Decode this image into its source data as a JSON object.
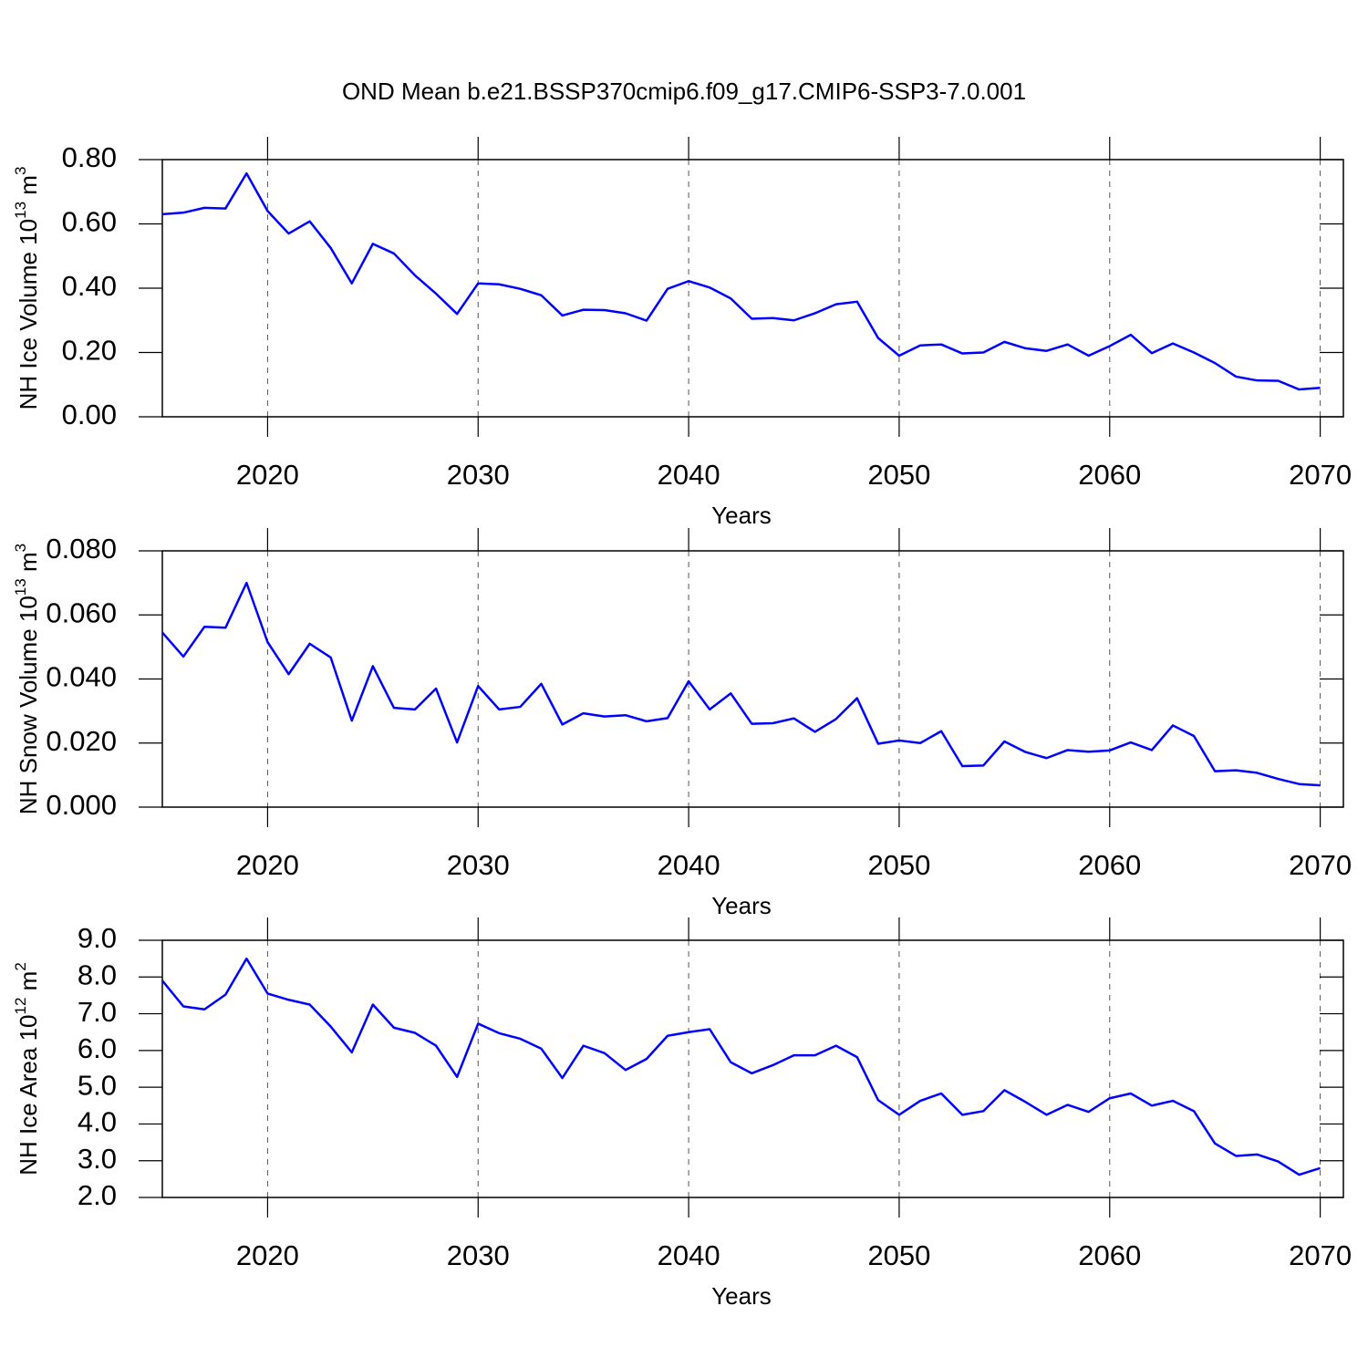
{
  "chart_data": [
    {
      "type": "line",
      "title": "OND Mean b.e21.BSSP370cmip6.f09_g17.CMIP6-SSP3-7.0.001",
      "ylabel": [
        "NH Ice Volume 10",
        "13",
        " m",
        "3"
      ],
      "xlabel": "Years",
      "x": [
        2015,
        2016,
        2017,
        2018,
        2019,
        2020,
        2021,
        2022,
        2023,
        2024,
        2025,
        2026,
        2027,
        2028,
        2029,
        2030,
        2031,
        2032,
        2033,
        2034,
        2035,
        2036,
        2037,
        2038,
        2039,
        2040,
        2041,
        2042,
        2043,
        2044,
        2045,
        2046,
        2047,
        2048,
        2049,
        2050,
        2051,
        2052,
        2053,
        2054,
        2055,
        2056,
        2057,
        2058,
        2059,
        2060,
        2061,
        2062,
        2063,
        2064,
        2065,
        2066,
        2067,
        2068,
        2069,
        2070
      ],
      "values": [
        0.63,
        0.635,
        0.65,
        0.648,
        0.757,
        0.64,
        0.57,
        0.608,
        0.525,
        0.415,
        0.538,
        0.508,
        0.44,
        0.383,
        0.32,
        0.415,
        0.412,
        0.398,
        0.378,
        0.315,
        0.333,
        0.332,
        0.322,
        0.299,
        0.398,
        0.422,
        0.402,
        0.368,
        0.305,
        0.307,
        0.3,
        0.322,
        0.35,
        0.358,
        0.245,
        0.19,
        0.222,
        0.225,
        0.197,
        0.2,
        0.233,
        0.213,
        0.205,
        0.225,
        0.19,
        0.22,
        0.255,
        0.198,
        0.228,
        0.2,
        0.167,
        0.125,
        0.113,
        0.112,
        0.085,
        0.09
      ],
      "color": "#0000ff",
      "xlim": [
        2015,
        2071.1
      ],
      "xticks": [
        2020,
        2030,
        2040,
        2050,
        2060,
        2070
      ],
      "ylim": [
        0,
        0.8
      ],
      "yticks": [
        {
          "value": 0,
          "label": "0.00"
        },
        {
          "value": 0.2,
          "label": "0.20"
        },
        {
          "value": 0.4,
          "label": "0.40"
        },
        {
          "value": 0.6,
          "label": "0.60"
        },
        {
          "value": 0.8,
          "label": "0.80"
        }
      ],
      "xgrid": true
    },
    {
      "type": "line",
      "ylabel": [
        "NH Snow Volume 10",
        "13",
        " m",
        "3"
      ],
      "xlabel": "Years",
      "x": [
        2015,
        2016,
        2017,
        2018,
        2019,
        2020,
        2021,
        2022,
        2023,
        2024,
        2025,
        2026,
        2027,
        2028,
        2029,
        2030,
        2031,
        2032,
        2033,
        2034,
        2035,
        2036,
        2037,
        2038,
        2039,
        2040,
        2041,
        2042,
        2043,
        2044,
        2045,
        2046,
        2047,
        2048,
        2049,
        2050,
        2051,
        2052,
        2053,
        2054,
        2055,
        2056,
        2057,
        2058,
        2059,
        2060,
        2061,
        2062,
        2063,
        2064,
        2065,
        2066,
        2067,
        2068,
        2069,
        2070
      ],
      "values": [
        0.0545,
        0.047,
        0.0563,
        0.056,
        0.07,
        0.0515,
        0.0415,
        0.051,
        0.0467,
        0.027,
        0.044,
        0.031,
        0.0305,
        0.037,
        0.0202,
        0.0378,
        0.0305,
        0.0313,
        0.0385,
        0.0258,
        0.0293,
        0.0283,
        0.0287,
        0.0268,
        0.0278,
        0.0393,
        0.0305,
        0.0355,
        0.026,
        0.0262,
        0.0277,
        0.0235,
        0.0275,
        0.034,
        0.0198,
        0.0208,
        0.02,
        0.0237,
        0.0128,
        0.013,
        0.0205,
        0.0172,
        0.0153,
        0.0178,
        0.0173,
        0.0177,
        0.0202,
        0.0178,
        0.0255,
        0.0222,
        0.0112,
        0.0115,
        0.0107,
        0.0088,
        0.0072,
        0.0068
      ],
      "color": "#0000ff",
      "xlim": [
        2015,
        2071.1
      ],
      "xticks": [
        2020,
        2030,
        2040,
        2050,
        2060,
        2070
      ],
      "ylim": [
        0,
        0.08
      ],
      "yticks": [
        {
          "value": 0,
          "label": "0.000"
        },
        {
          "value": 0.02,
          "label": "0.020"
        },
        {
          "value": 0.04,
          "label": "0.040"
        },
        {
          "value": 0.06,
          "label": "0.060"
        },
        {
          "value": 0.08,
          "label": "0.080"
        }
      ],
      "xgrid": true
    },
    {
      "type": "line",
      "ylabel": [
        "NH Ice Area 10",
        "12",
        " m",
        "2"
      ],
      "xlabel": "Years",
      "x": [
        2015,
        2016,
        2017,
        2018,
        2019,
        2020,
        2021,
        2022,
        2023,
        2024,
        2025,
        2026,
        2027,
        2028,
        2029,
        2030,
        2031,
        2032,
        2033,
        2034,
        2035,
        2036,
        2037,
        2038,
        2039,
        2040,
        2041,
        2042,
        2043,
        2044,
        2045,
        2046,
        2047,
        2048,
        2049,
        2050,
        2051,
        2052,
        2053,
        2054,
        2055,
        2056,
        2057,
        2058,
        2059,
        2060,
        2061,
        2062,
        2063,
        2064,
        2065,
        2066,
        2067,
        2068,
        2069,
        2070
      ],
      "values": [
        7.9,
        7.2,
        7.12,
        7.52,
        8.5,
        7.55,
        7.38,
        7.25,
        6.65,
        5.95,
        7.25,
        6.62,
        6.48,
        6.13,
        5.28,
        6.73,
        6.47,
        6.32,
        6.05,
        5.25,
        6.13,
        5.93,
        5.47,
        5.77,
        6.4,
        6.5,
        6.58,
        5.68,
        5.38,
        5.6,
        5.87,
        5.87,
        6.13,
        5.82,
        4.65,
        4.25,
        4.63,
        4.83,
        4.25,
        4.35,
        4.92,
        4.6,
        4.25,
        4.52,
        4.33,
        4.7,
        4.83,
        4.5,
        4.63,
        4.35,
        3.47,
        3.13,
        3.17,
        2.98,
        2.62,
        2.8
      ],
      "color": "#0000ff",
      "xlim": [
        2015,
        2071.1
      ],
      "xticks": [
        2020,
        2030,
        2040,
        2050,
        2060,
        2070
      ],
      "ylim": [
        2,
        9
      ],
      "yticks": [
        {
          "value": 2,
          "label": "2.0"
        },
        {
          "value": 3,
          "label": "3.0"
        },
        {
          "value": 4,
          "label": "4.0"
        },
        {
          "value": 5,
          "label": "5.0"
        },
        {
          "value": 6,
          "label": "6.0"
        },
        {
          "value": 7,
          "label": "7.0"
        },
        {
          "value": 8,
          "label": "8.0"
        },
        {
          "value": 9,
          "label": "9.0"
        }
      ],
      "xgrid": true
    }
  ]
}
